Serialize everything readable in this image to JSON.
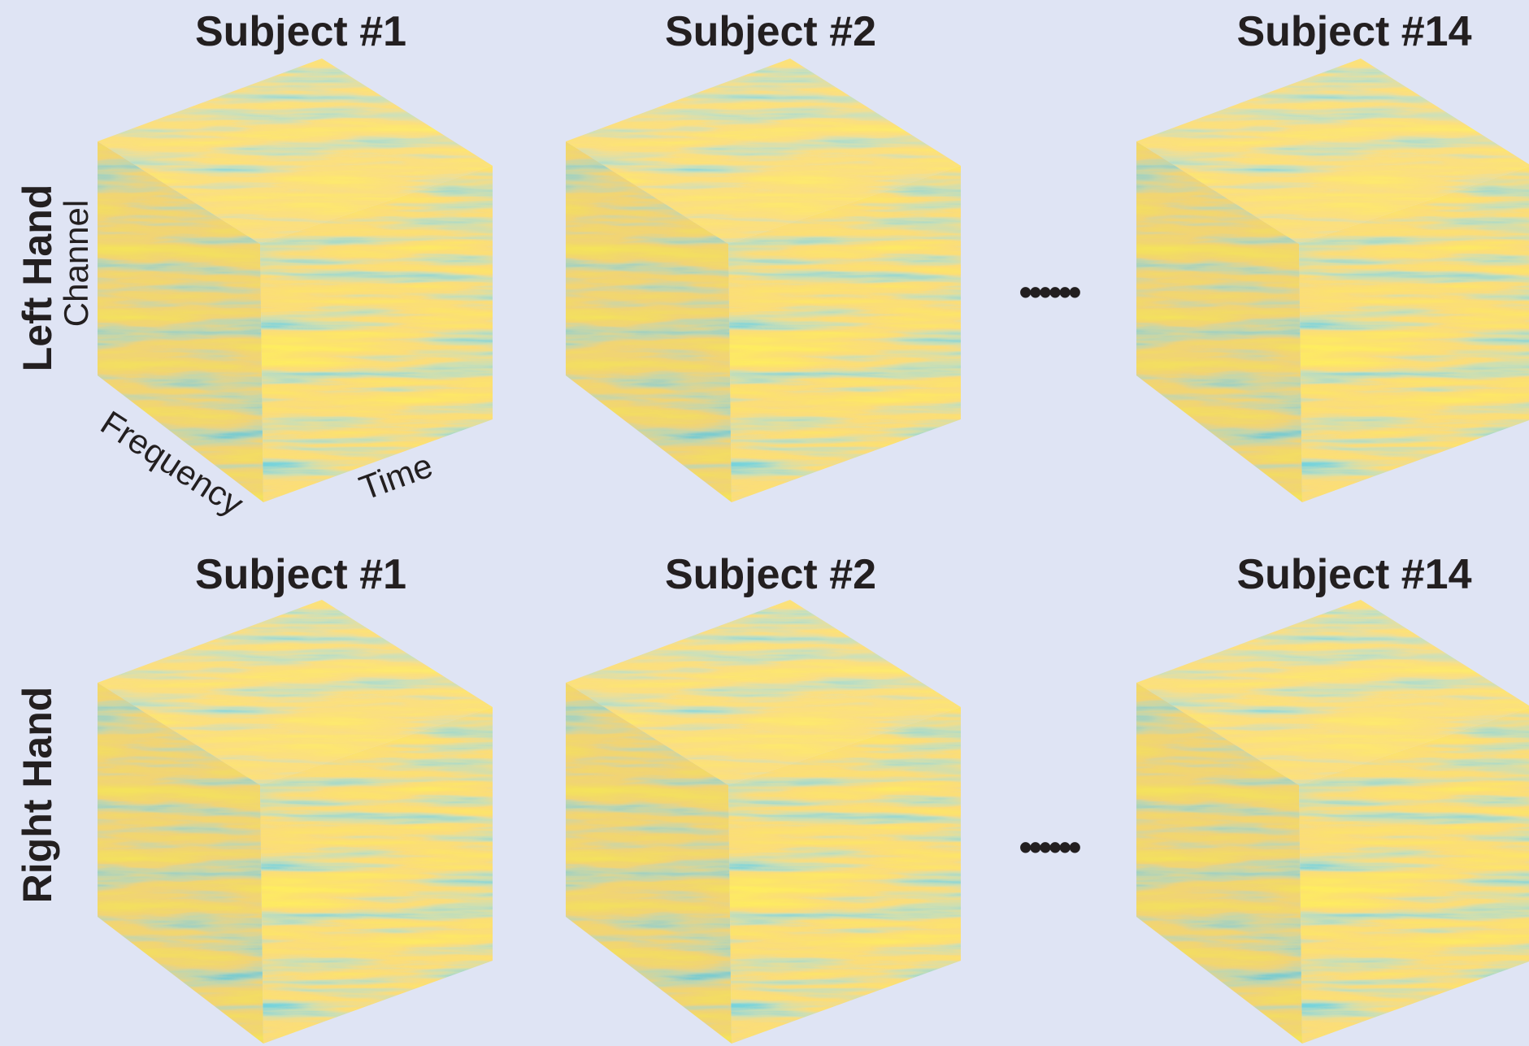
{
  "rows": [
    {
      "label": "Left Hand",
      "subjects": [
        "Subject #1",
        "Subject #2",
        "Subject #14"
      ],
      "ellipsis": "••••••"
    },
    {
      "label": "Right Hand",
      "subjects": [
        "Subject #1",
        "Subject #2",
        "Subject #14"
      ],
      "ellipsis": "••••••"
    }
  ],
  "axes": {
    "channel": "Channel",
    "frequency": "Frequency",
    "time": "Time"
  }
}
